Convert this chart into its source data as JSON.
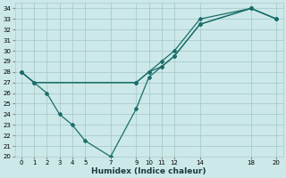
{
  "xlabel": "Humidex (Indice chaleur)",
  "background_color": "#cce8e8",
  "grid_color": "#aacccc",
  "line_color": "#1a6e6a",
  "xlim": [
    -0.5,
    20.5
  ],
  "ylim": [
    20,
    34.5
  ],
  "xticks": [
    0,
    1,
    2,
    3,
    4,
    5,
    7,
    9,
    10,
    11,
    12,
    14,
    18,
    20
  ],
  "yticks": [
    20,
    21,
    22,
    23,
    24,
    25,
    26,
    27,
    28,
    29,
    30,
    31,
    32,
    33,
    34
  ],
  "lines": [
    {
      "x": [
        0,
        2,
        3,
        4,
        5,
        7,
        9,
        10,
        11,
        12,
        14,
        18,
        20
      ],
      "y": [
        28,
        26,
        24,
        23,
        21.5,
        20,
        24.5,
        27.5,
        28.5,
        29.5,
        32.5,
        34,
        33
      ]
    },
    {
      "x": [
        0,
        1,
        9,
        10,
        11,
        12,
        14,
        18,
        20
      ],
      "y": [
        28,
        27,
        27,
        28,
        29,
        30,
        33,
        34,
        33
      ]
    },
    {
      "x": [
        0,
        1,
        9,
        10,
        11,
        12,
        14,
        18,
        20
      ],
      "y": [
        28,
        27,
        27,
        28,
        28.5,
        29.5,
        32.5,
        34,
        33
      ]
    }
  ]
}
